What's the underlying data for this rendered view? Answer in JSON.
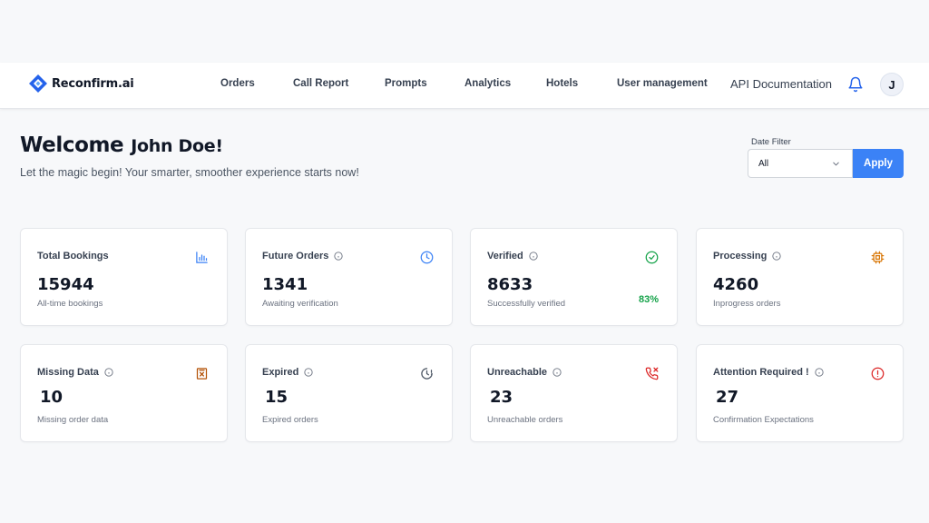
{
  "brand": {
    "name": "Reconfirm.ai",
    "color": "#2563eb"
  },
  "nav": {
    "items": [
      {
        "label": "Orders"
      },
      {
        "label": "Call Report"
      },
      {
        "label": "Prompts"
      },
      {
        "label": "Analytics"
      },
      {
        "label": "Hotels"
      },
      {
        "label": "User management"
      }
    ],
    "api_label": "API Documentation",
    "notifications_icon": "bell-icon",
    "avatar_initial": "J"
  },
  "header": {
    "welcome": "Welcome",
    "user_name": "John Doe!",
    "subtitle": "Let the magic begin! Your smarter, smoother experience starts now!"
  },
  "filter": {
    "label": "Date Filter",
    "selected": "All",
    "apply_label": "Apply",
    "accent": "#3b82f6"
  },
  "cards": [
    {
      "title": "Total Bookings",
      "value": "15944",
      "desc": "All-time bookings",
      "icon": "bar-chart-icon",
      "icon_color": "#3b82f6"
    },
    {
      "title": "Future Orders",
      "value": "1341",
      "desc": "Awaiting verification",
      "icon": "clock-icon",
      "icon_color": "#3b82f6"
    },
    {
      "title": "Verified",
      "value": "8633",
      "desc": "Successfully verified",
      "pct": "83%",
      "icon": "check-circle-icon",
      "icon_color": "#16a34a"
    },
    {
      "title": "Processing",
      "value": "4260",
      "desc": "Inprogress orders",
      "icon": "cpu-icon",
      "icon_color": "#d97706"
    },
    {
      "title": "Missing Data",
      "value": "10",
      "desc": "Missing order data",
      "icon": "file-x-icon",
      "icon_color": "#b45309"
    },
    {
      "title": "Expired",
      "value": "15",
      "desc": "Expired orders",
      "icon": "clock-alert-icon",
      "icon_color": "#4b5563"
    },
    {
      "title": "Unreachable",
      "value": "23",
      "desc": "Unreachable orders",
      "icon": "phone-missed-icon",
      "icon_color": "#dc2626"
    },
    {
      "title": "Attention Required !",
      "value": "27",
      "desc": "Confirmation Expectations",
      "icon": "alert-circle-icon",
      "icon_color": "#dc2626"
    }
  ]
}
